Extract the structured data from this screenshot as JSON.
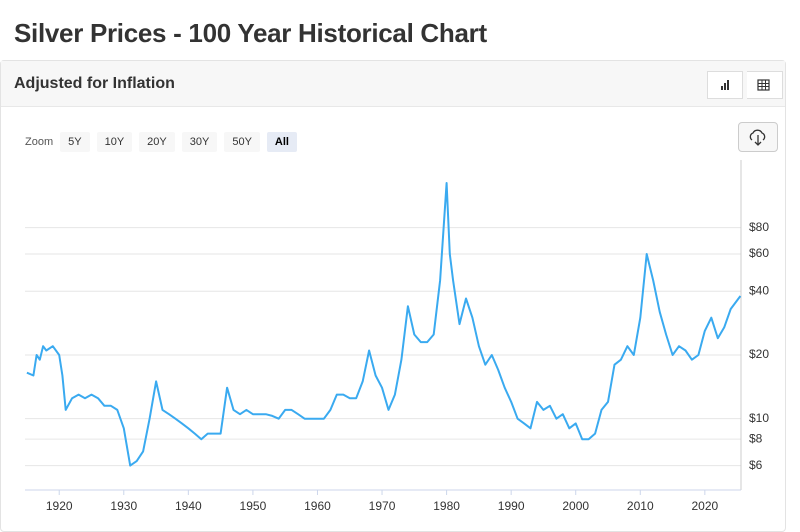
{
  "header": {
    "title": "Silver Prices - 100 Year Historical Chart"
  },
  "chart_data": {
    "type": "line",
    "subtitle": "Adjusted for Inflation",
    "zoom": {
      "label": "Zoom",
      "options": [
        "5Y",
        "10Y",
        "20Y",
        "30Y",
        "50Y",
        "All"
      ],
      "selected": "All"
    },
    "log_scale": true,
    "grid": true,
    "y_axis_side": "right",
    "xlim": [
      1914.7,
      2025.6
    ],
    "xticks": [
      1920,
      1930,
      1940,
      1950,
      1960,
      1970,
      1980,
      1990,
      2000,
      2010,
      2020
    ],
    "ylim": [
      4.6,
      167
    ],
    "yticks": [
      {
        "value": 6,
        "label": "$6"
      },
      {
        "value": 8,
        "label": "$8"
      },
      {
        "value": 10,
        "label": "$10"
      },
      {
        "value": 20,
        "label": "$20"
      },
      {
        "value": 40,
        "label": "$40"
      },
      {
        "value": 60,
        "label": "$60"
      },
      {
        "value": 80,
        "label": "$80"
      }
    ],
    "x": [
      1915,
      1916,
      1916.5,
      1917,
      1917.5,
      1918,
      1919,
      1920,
      1920.5,
      1921,
      1922,
      1923,
      1924,
      1925,
      1926,
      1927,
      1928,
      1929,
      1930,
      1931,
      1932,
      1933,
      1934,
      1935,
      1936,
      1937,
      1938,
      1939,
      1940,
      1941,
      1942,
      1943,
      1944,
      1945,
      1946,
      1947,
      1948,
      1949,
      1950,
      1951,
      1952,
      1953,
      1954,
      1955,
      1956,
      1957,
      1958,
      1959,
      1960,
      1961,
      1962,
      1963,
      1964,
      1965,
      1966,
      1967,
      1968,
      1969,
      1970,
      1971,
      1972,
      1973,
      1974,
      1975,
      1976,
      1977,
      1978,
      1979,
      1980,
      1980.5,
      1981,
      1982,
      1983,
      1984,
      1985,
      1986,
      1987,
      1988,
      1989,
      1990,
      1991,
      1992,
      1993,
      1994,
      1995,
      1996,
      1997,
      1998,
      1999,
      2000,
      2001,
      2002,
      2003,
      2004,
      2005,
      2006,
      2007,
      2008,
      2009,
      2010,
      2011,
      2012,
      2013,
      2014,
      2015,
      2016,
      2017,
      2018,
      2019,
      2020,
      2021,
      2022,
      2023,
      2024,
      2025.5
    ],
    "series": [
      {
        "name": "Silver",
        "color": "#3aaaf0",
        "values": [
          16.5,
          16,
          20,
          19,
          22,
          21,
          22,
          20,
          16,
          11,
          12.5,
          13,
          12.5,
          13,
          12.5,
          11.5,
          11.5,
          11,
          9,
          6,
          6.3,
          7,
          10,
          15,
          11,
          10.5,
          10,
          9.5,
          9,
          8.5,
          8,
          8.5,
          8.5,
          8.5,
          14,
          11,
          10.5,
          11,
          10.5,
          10.5,
          10.5,
          10.3,
          10,
          11,
          11,
          10.5,
          10,
          10,
          10,
          10,
          11,
          13,
          13,
          12.5,
          12.5,
          15,
          21,
          16,
          14,
          11,
          13,
          19,
          34,
          25,
          23,
          23,
          25,
          45,
          130,
          60,
          45,
          28,
          37,
          30,
          22,
          18,
          20,
          17,
          14,
          12,
          10,
          9.5,
          9,
          12,
          11,
          11.5,
          10,
          10.5,
          9,
          9.5,
          8,
          8,
          8.5,
          11,
          12,
          18,
          19,
          22,
          20,
          30,
          60,
          45,
          32,
          25,
          20,
          22,
          21,
          19,
          20,
          26,
          30,
          24,
          27,
          33,
          38
        ]
      }
    ]
  }
}
